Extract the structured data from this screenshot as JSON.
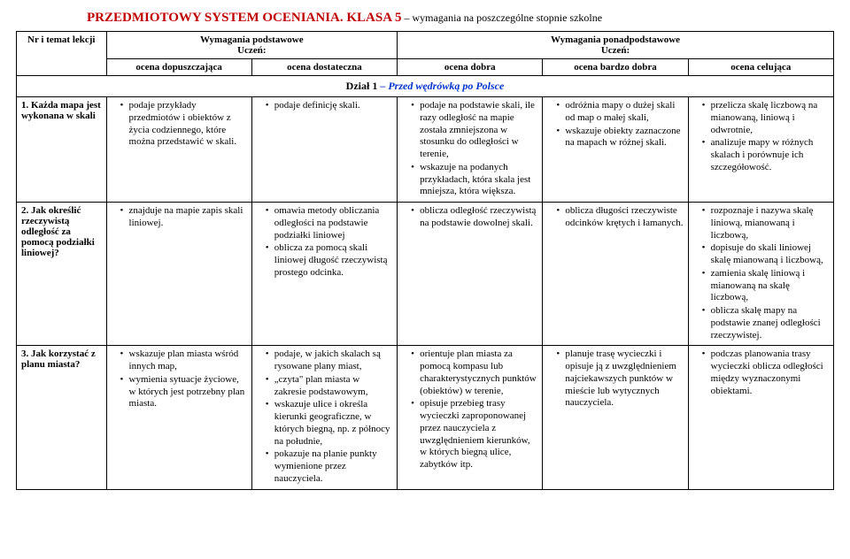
{
  "title": {
    "main": "PRZEDMIOTOWY SYSTEM OCENIANIA. KLASA 5",
    "sub": " – wymagania na poszczególne stopnie szkolne"
  },
  "headers": {
    "topic": "Nr i temat lekcji",
    "basic": "Wymagania podstawowe\nUczeń:",
    "extended": "Wymagania ponadpodstawowe\nUczeń:",
    "g1": "ocena dopuszczająca",
    "g2": "ocena dostateczna",
    "g3": "ocena dobra",
    "g4": "ocena bardzo dobra",
    "g5": "ocena celująca"
  },
  "section1": "Dział 1 – Przed wędrówką po Polsce",
  "rows": [
    {
      "topic": "1. Każda mapa jest wykonana w skali",
      "c1": [
        "podaje przykłady przedmiotów i obiektów z życia codziennego, które można przedstawić w skali."
      ],
      "c2": [
        "podaje definicję skali."
      ],
      "c3": [
        "podaje na podstawie skali, ile razy odległość na mapie została zmniejszona w stosunku do odległości w terenie,",
        "wskazuje na podanych przykładach, która skala jest mniejsza, która większa."
      ],
      "c4": [
        "odróżnia mapy o dużej skali od map o małej skali,",
        "wskazuje obiekty zaznaczone na mapach w różnej skali."
      ],
      "c5": [
        "przelicza skalę liczbową na mianowaną, liniową i odwrotnie,",
        "analizuje mapy w różnych skalach i porównuje ich szczegółowość."
      ]
    },
    {
      "topic": "2. Jak określić rzeczywistą odległość za pomocą podziałki liniowej?",
      "c1": [
        "znajduje na mapie zapis skali liniowej."
      ],
      "c2": [
        "omawia metody obliczania odległości na podstawie podziałki liniowej",
        "oblicza za pomocą skali liniowej długość rzeczywistą prostego odcinka."
      ],
      "c3": [
        "oblicza odległość rzeczywistą na podstawie dowolnej skali."
      ],
      "c4": [
        "oblicza długości rzeczywiste odcinków krętych i łamanych."
      ],
      "c5": [
        "rozpoznaje i nazywa skalę liniową, mianowaną i liczbową,",
        "dopisuje do skali liniowej skalę mianowaną i liczbową,",
        "zamienia skalę liniową i mianowaną na skalę liczbową,",
        "oblicza skalę mapy na podstawie znanej odległości rzeczywistej."
      ]
    },
    {
      "topic": "3. Jak korzystać z planu miasta?",
      "c1": [
        "wskazuje plan miasta wśród innych map,",
        "wymienia sytuacje życiowe, w których jest potrzebny plan miasta."
      ],
      "c2": [
        "podaje, w jakich skalach są rysowane plany miast,",
        "„czyta\" plan miasta w zakresie podstawowym,",
        "wskazuje ulice i określa kierunki geograficzne, w których biegną, np. z północy na południe,",
        "pokazuje na planie punkty wymienione przez nauczyciela."
      ],
      "c3": [
        "orientuje plan miasta za pomocą kompasu lub charakterystycznych punktów (obiektów) w terenie,",
        "opisuje przebieg trasy wycieczki zaproponowanej przez nauczyciela z uwzględnieniem kierunków, w których biegną ulice, zabytków itp."
      ],
      "c4": [
        "planuje trasę wycieczki i opisuje ją z uwzględnieniem najciekawszych punktów w mieście lub wytycznych nauczyciela."
      ],
      "c5": [
        "podczas planowania trasy wycieczki oblicza odległości między wyznaczonymi obiektami."
      ]
    }
  ]
}
